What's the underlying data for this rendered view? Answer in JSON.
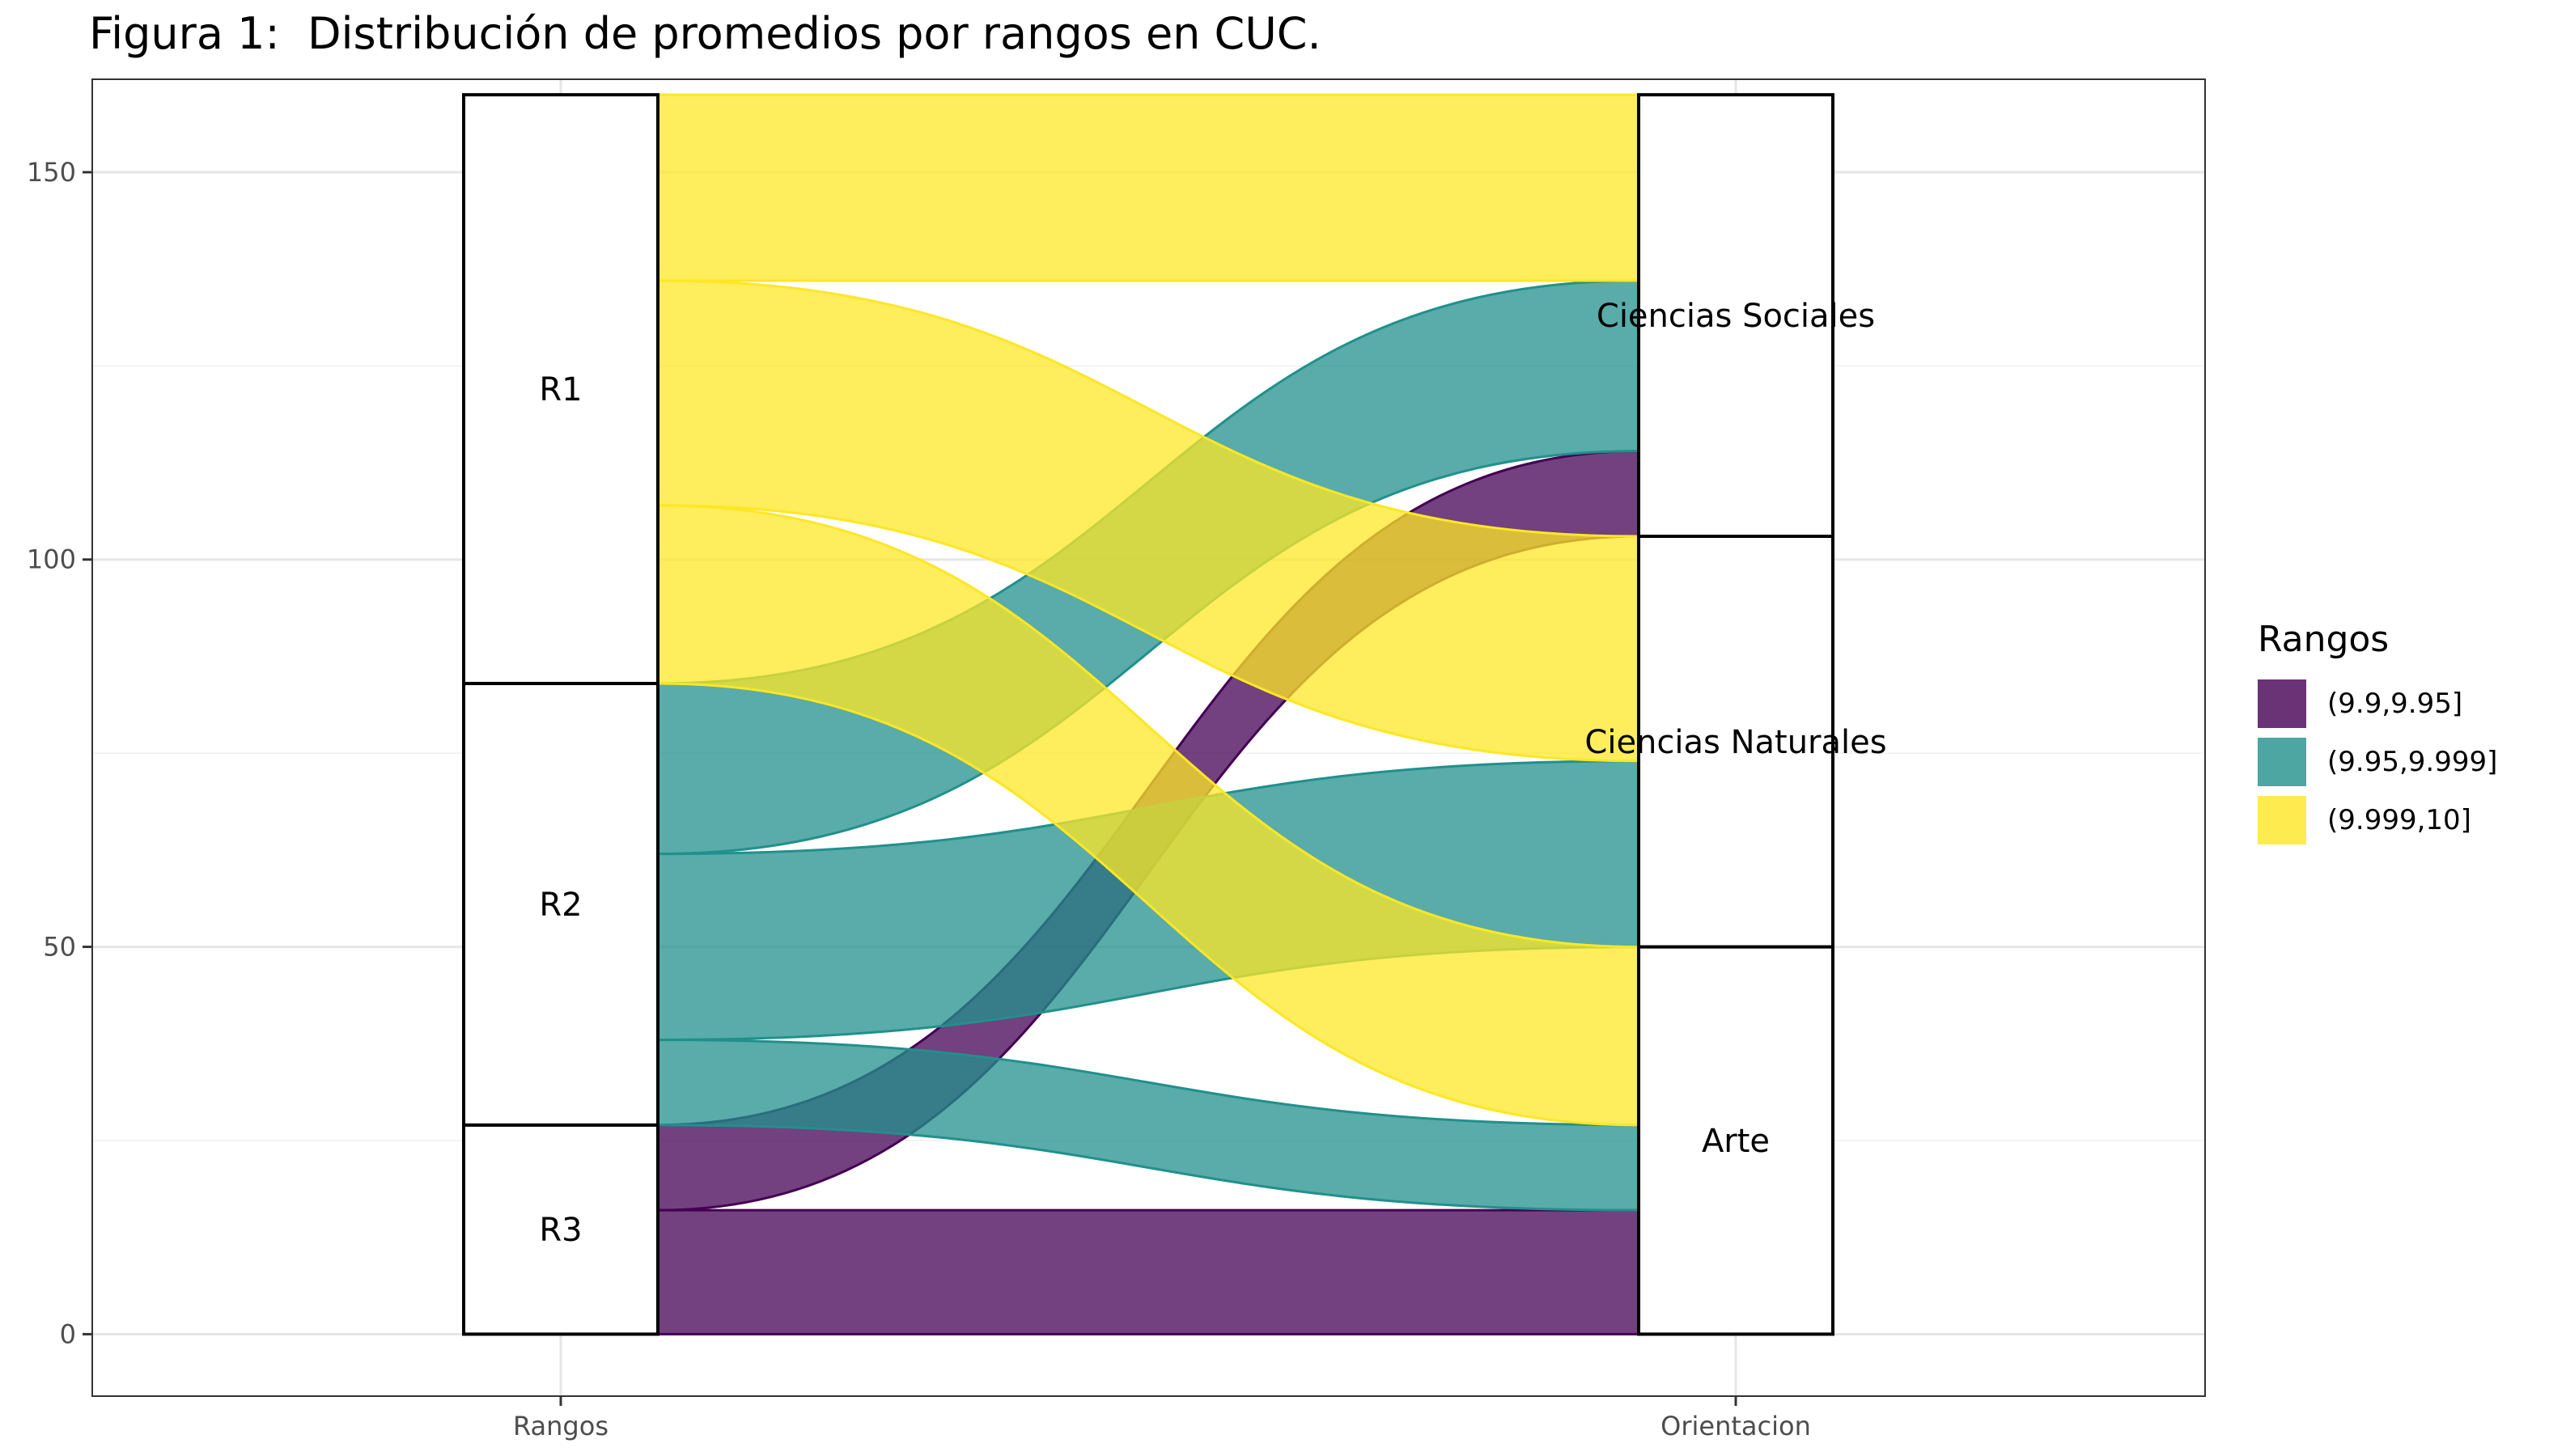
{
  "chart_data": {
    "type": "alluvial",
    "title": "Figura 1:  Distribución de promedios por rangos en CUC.",
    "axes": [
      "Rangos",
      "Orientacion"
    ],
    "ylim": [
      -8,
      162
    ],
    "y_ticks": [
      0,
      50,
      100,
      150
    ],
    "grid": true,
    "legend_title": "Rangos",
    "legend_position": "right",
    "fill_categories": [
      {
        "label": "(9.9,9.95]",
        "color": "#440154"
      },
      {
        "label": "(9.95,9.999]",
        "color": "#21908C"
      },
      {
        "label": "(9.999,10]",
        "color": "#FDE725"
      }
    ],
    "strata": {
      "Rangos": [
        {
          "label": "R3",
          "value": 27
        },
        {
          "label": "R2",
          "value": 57
        },
        {
          "label": "R1",
          "value": 76
        }
      ],
      "Orientacion": [
        {
          "label": "Arte",
          "value": 50
        },
        {
          "label": "Ciencias Naturales",
          "value": 53
        },
        {
          "label": "Ciencias Sociales",
          "value": 57
        }
      ]
    },
    "flows": [
      {
        "from": "R3",
        "to": "Arte",
        "fill": "(9.9,9.95]",
        "value": 16
      },
      {
        "from": "R3",
        "to": "Ciencias Sociales",
        "fill": "(9.9,9.95]",
        "value": 11
      },
      {
        "from": "R2",
        "to": "Arte",
        "fill": "(9.95,9.999]",
        "value": 11
      },
      {
        "from": "R2",
        "to": "Ciencias Naturales",
        "fill": "(9.95,9.999]",
        "value": 24
      },
      {
        "from": "R2",
        "to": "Ciencias Sociales",
        "fill": "(9.95,9.999]",
        "value": 22
      },
      {
        "from": "R1",
        "to": "Arte",
        "fill": "(9.999,10]",
        "value": 23
      },
      {
        "from": "R1",
        "to": "Ciencias Naturales",
        "fill": "(9.999,10]",
        "value": 29
      },
      {
        "from": "R1",
        "to": "Ciencias Sociales",
        "fill": "(9.999,10]",
        "value": 24
      }
    ]
  }
}
